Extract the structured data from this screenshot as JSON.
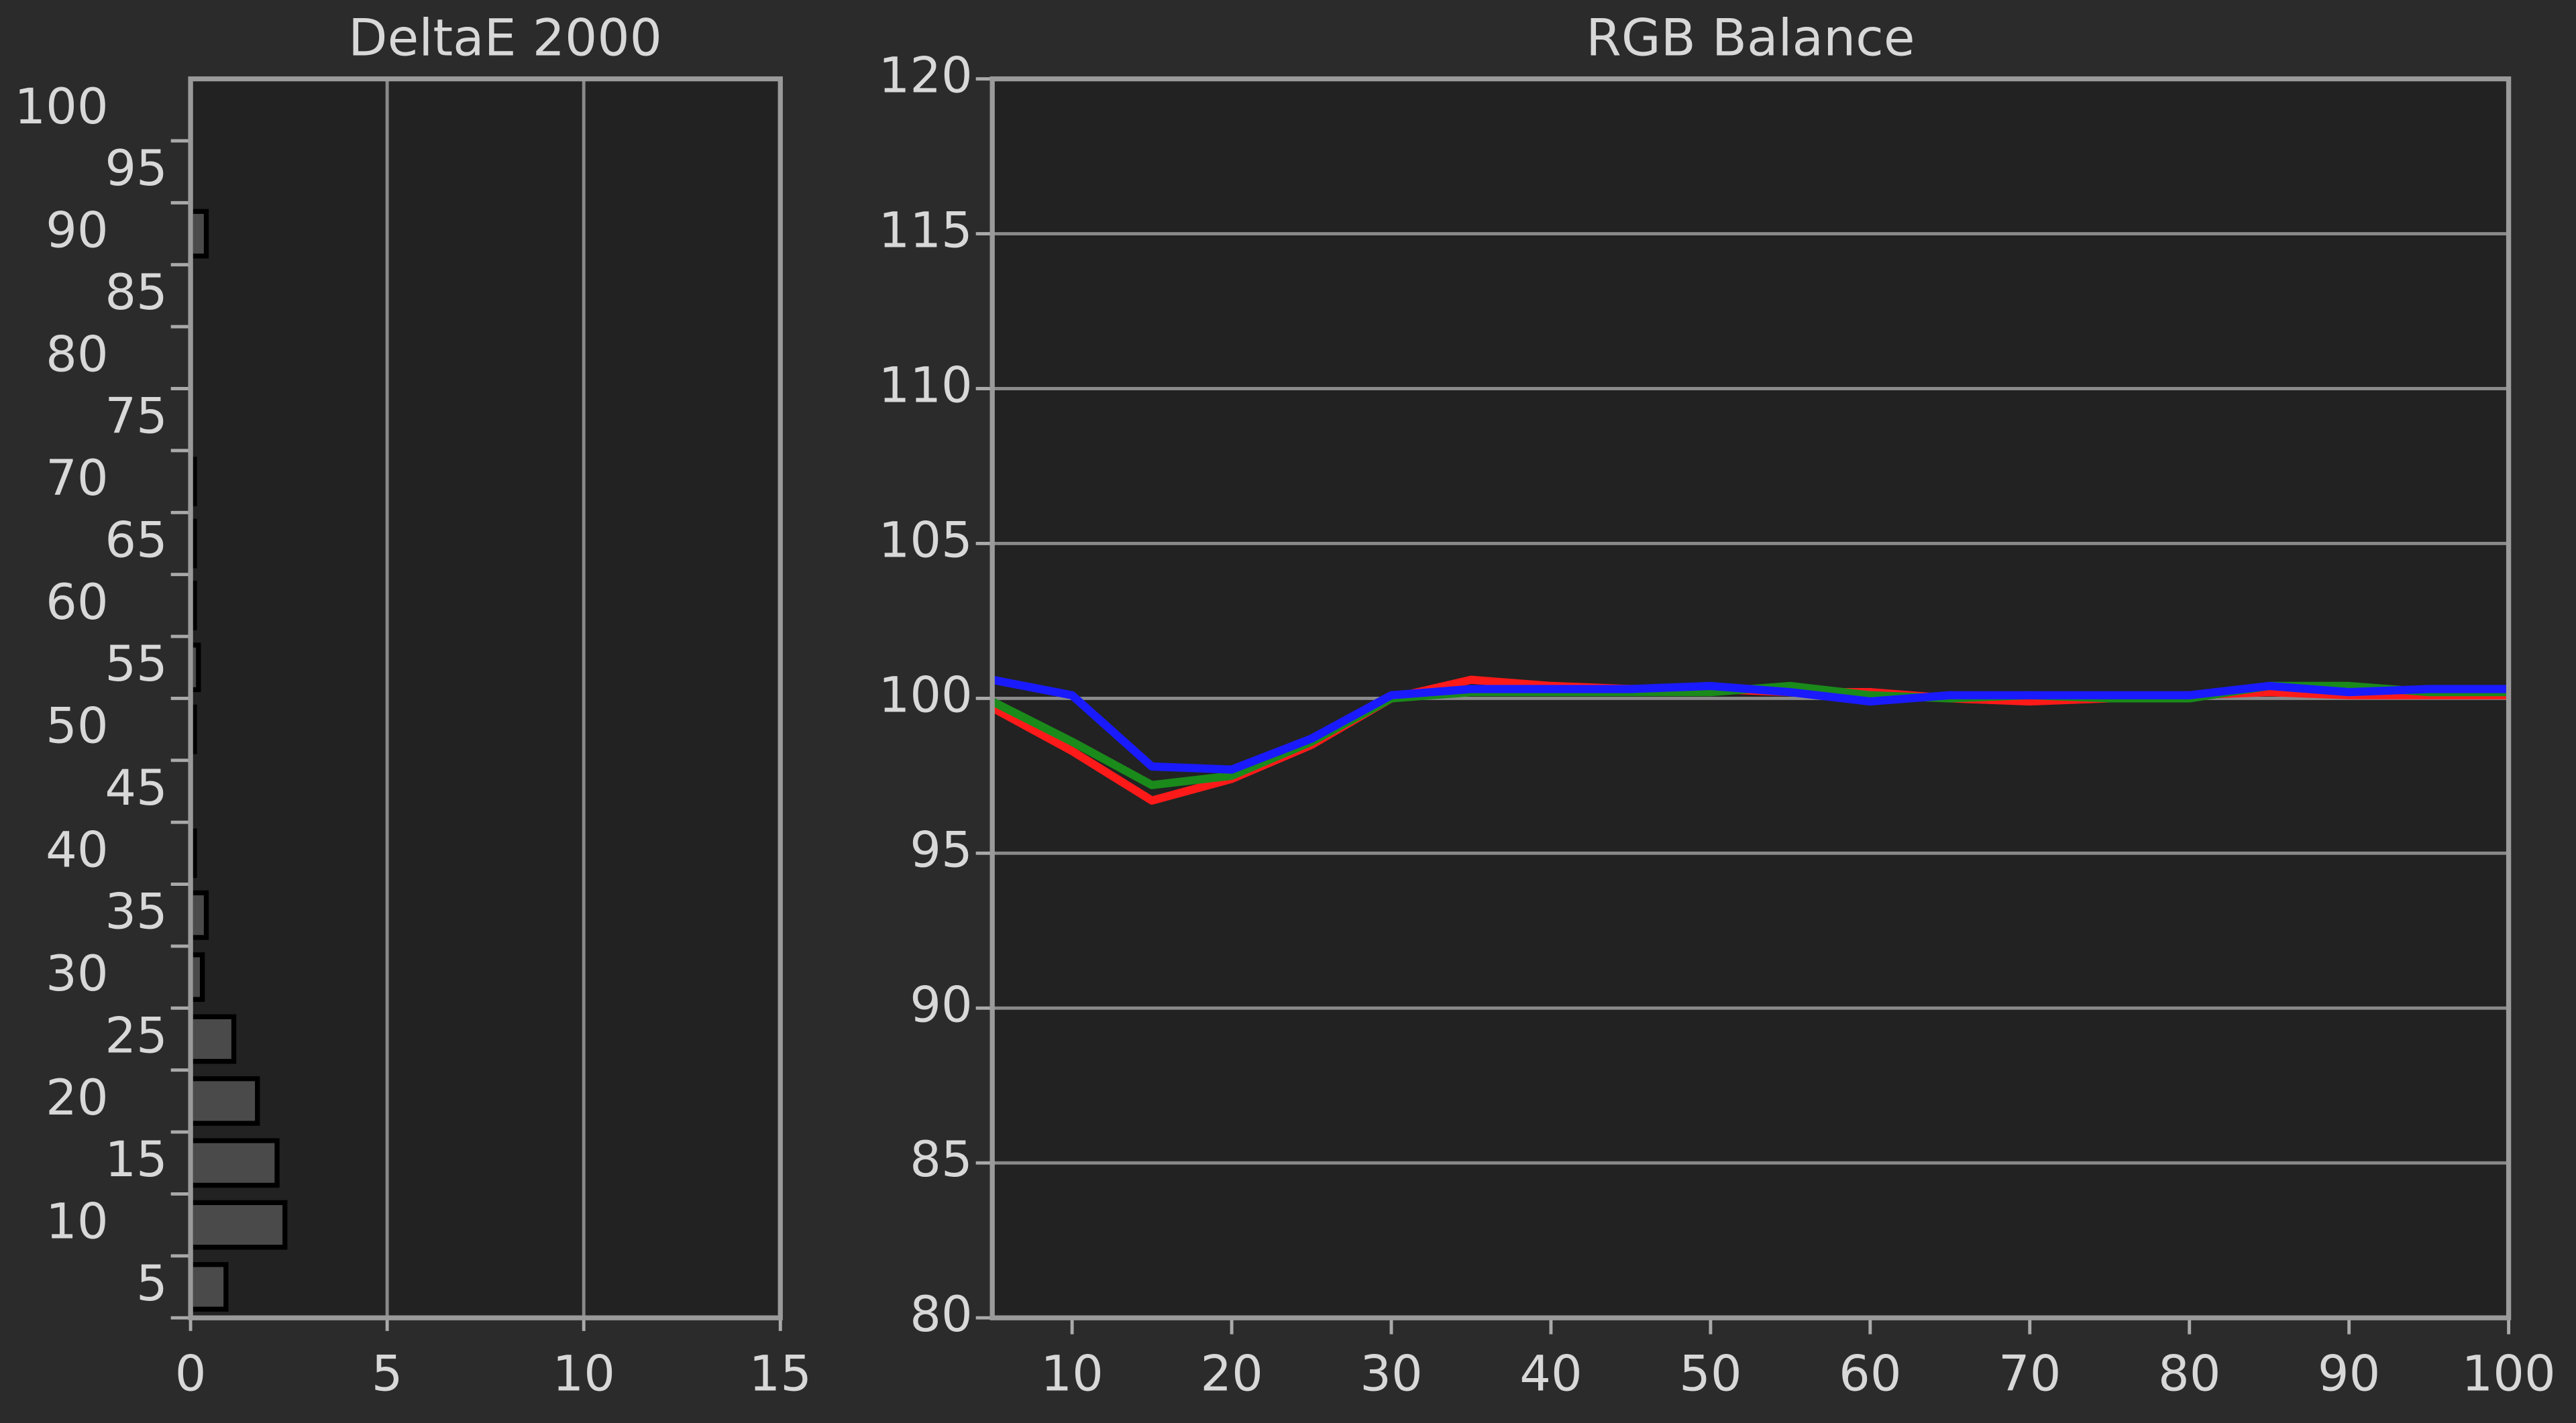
{
  "chart_data": [
    {
      "type": "hbar",
      "title": "DeltaE 2000",
      "categories": [
        "100",
        "95",
        "90",
        "85",
        "80",
        "75",
        "70",
        "65",
        "60",
        "55",
        "50",
        "45",
        "40",
        "35",
        "30",
        "25",
        "20",
        "15",
        "10",
        "5"
      ],
      "values": [
        0,
        0,
        0.4,
        0,
        0,
        0,
        0.1,
        0.1,
        0.1,
        0.2,
        0.1,
        0,
        0.1,
        0.4,
        0.3,
        1.1,
        1.7,
        2.2,
        2.4,
        0.9
      ],
      "color": "#4a4a4a",
      "xlim": [
        0,
        15
      ],
      "xticks": [
        0,
        5,
        10,
        15
      ],
      "grid": true
    },
    {
      "type": "line",
      "title": "RGB Balance",
      "x": [
        5,
        10,
        15,
        20,
        25,
        30,
        35,
        40,
        45,
        50,
        55,
        60,
        65,
        70,
        75,
        80,
        85,
        90,
        95,
        100
      ],
      "series": [
        {
          "name": "Red",
          "color": "#ff1a1a",
          "values": [
            99.7,
            98.3,
            96.7,
            97.4,
            98.5,
            100.0,
            100.6,
            100.4,
            100.3,
            100.3,
            100.2,
            100.2,
            100.0,
            99.9,
            100.0,
            100.1,
            100.2,
            100.1,
            100.1,
            100.1
          ]
        },
        {
          "name": "Green",
          "color": "#1a8a1a",
          "values": [
            99.9,
            98.6,
            97.2,
            97.5,
            98.6,
            100.0,
            100.2,
            100.2,
            100.2,
            100.2,
            100.4,
            100.1,
            100.0,
            100.1,
            100.0,
            100.0,
            100.4,
            100.4,
            100.2,
            100.2
          ]
        },
        {
          "name": "Blue",
          "color": "#1a1aff",
          "values": [
            100.6,
            100.1,
            97.8,
            97.7,
            98.7,
            100.1,
            100.3,
            100.3,
            100.3,
            100.4,
            100.2,
            99.9,
            100.1,
            100.1,
            100.1,
            100.1,
            100.4,
            100.2,
            100.3,
            100.3
          ]
        }
      ],
      "xlim": [
        5,
        100
      ],
      "xticks": [
        10,
        20,
        30,
        40,
        50,
        60,
        70,
        80,
        90,
        100
      ],
      "ylim": [
        80,
        120
      ],
      "yticks": [
        80,
        85,
        90,
        95,
        100,
        105,
        110,
        115,
        120
      ],
      "grid": true
    }
  ]
}
